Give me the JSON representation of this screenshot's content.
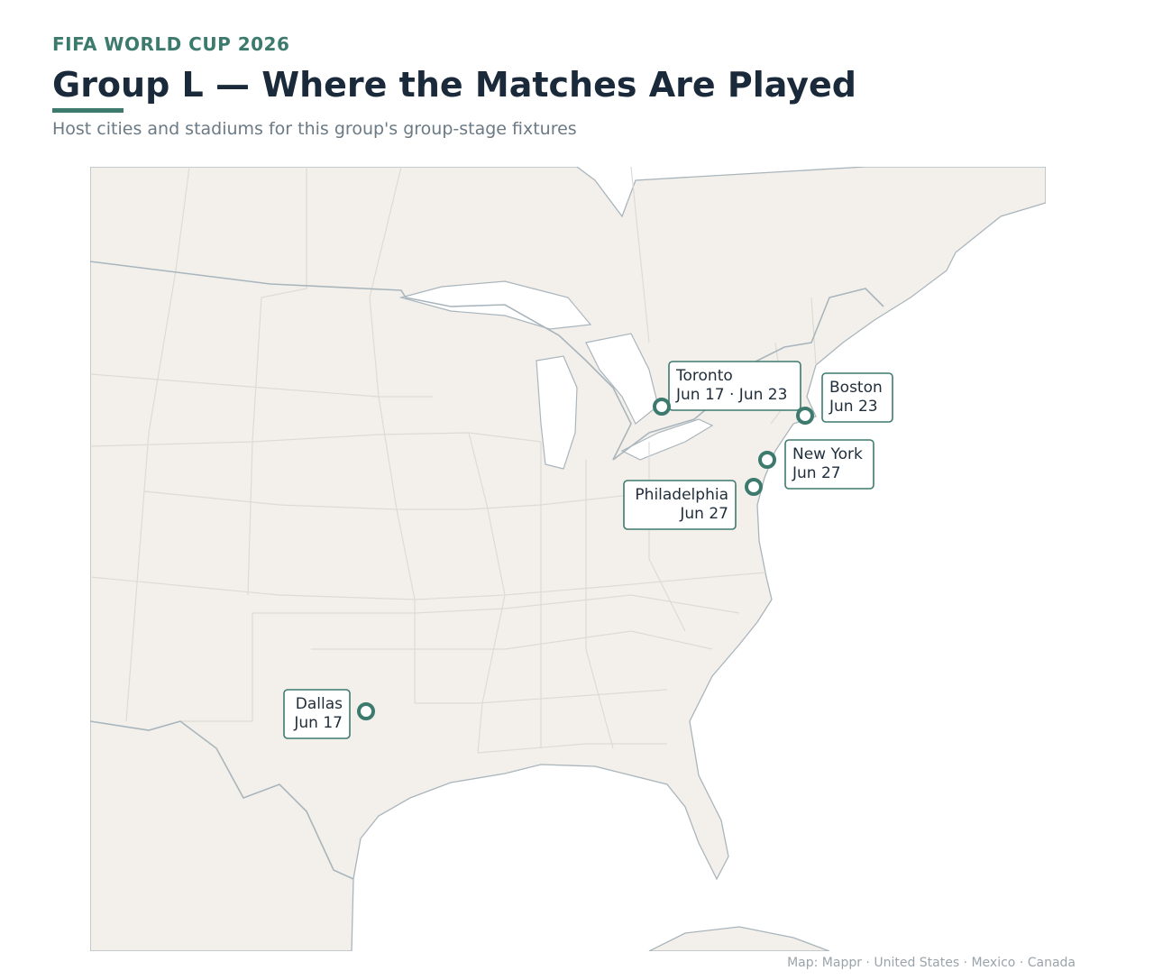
{
  "header": {
    "kicker": "FIFA WORLD CUP 2026",
    "title": "Group L — Where the Matches Are Played",
    "subtitle": "Host cities and stadiums for this group's group-stage fixtures"
  },
  "map": {
    "cities": [
      {
        "name": "Toronto",
        "dates": "Jun 17 · Jun 23"
      },
      {
        "name": "Boston",
        "dates": "Jun 23"
      },
      {
        "name": "New York",
        "dates": "Jun 27"
      },
      {
        "name": "Philadelphia",
        "dates": "Jun 27"
      },
      {
        "name": "Dallas",
        "dates": "Jun 17"
      }
    ]
  },
  "footer": {
    "credit": "Map: Mappr · United States · Mexico · Canada"
  }
}
